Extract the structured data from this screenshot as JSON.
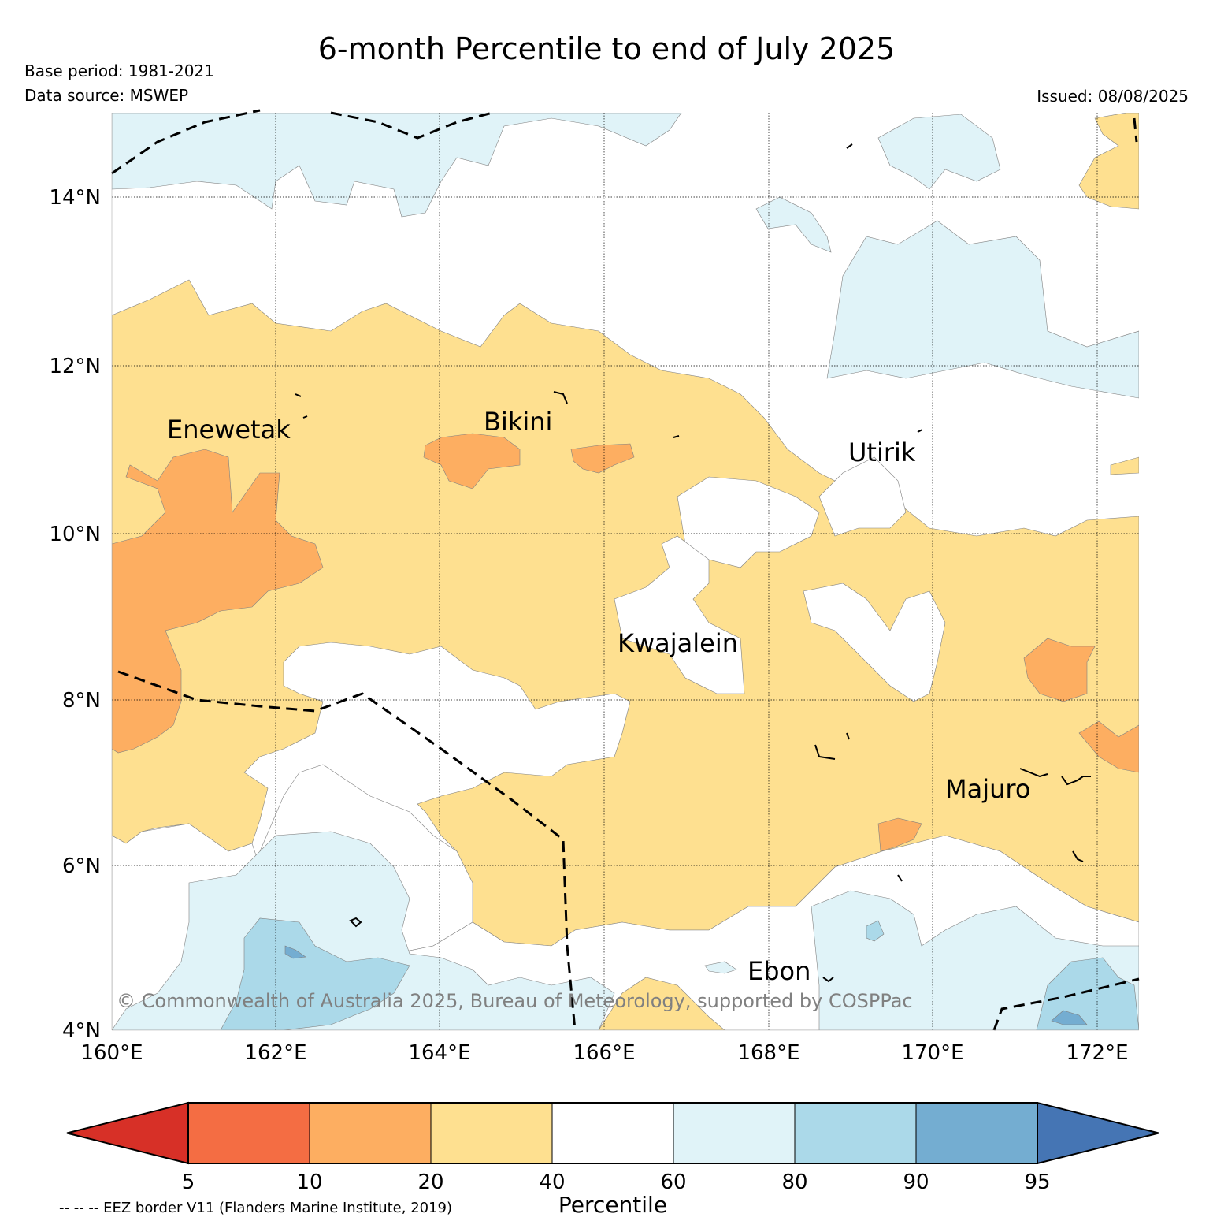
{
  "header": {
    "title": "6-month Percentile to end of July 2025",
    "base_period": "Base period: 1981-2021",
    "data_source": "Data source: MSWEP",
    "issued": "Issued: 08/08/2025"
  },
  "map": {
    "lon_range": [
      160,
      172.5
    ],
    "lat_range": [
      4,
      15
    ],
    "lon_ticks": [
      {
        "value": 160,
        "label": "160°E"
      },
      {
        "value": 162,
        "label": "162°E"
      },
      {
        "value": 164,
        "label": "164°E"
      },
      {
        "value": 166,
        "label": "166°E"
      },
      {
        "value": 168,
        "label": "168°E"
      },
      {
        "value": 170,
        "label": "170°E"
      },
      {
        "value": 172,
        "label": "172°E"
      }
    ],
    "lat_ticks": [
      {
        "value": 4,
        "label": "4°N"
      },
      {
        "value": 6,
        "label": "6°N"
      },
      {
        "value": 8,
        "label": "8°N"
      },
      {
        "value": 10,
        "label": "10°N"
      },
      {
        "value": 12,
        "label": "12°N"
      },
      {
        "value": 14,
        "label": "14°N"
      }
    ],
    "places": [
      {
        "name": "Enewetak",
        "lon": 160.7,
        "lat": 11.2
      },
      {
        "name": "Bikini",
        "lon": 164.55,
        "lat": 11.3
      },
      {
        "name": "Utirik",
        "lon": 169.0,
        "lat": 10.9
      },
      {
        "name": "Kwajalein",
        "lon": 166.2,
        "lat": 8.6
      },
      {
        "name": "Majuro",
        "lon": 170.2,
        "lat": 6.85
      },
      {
        "name": "Ebon",
        "lon": 167.7,
        "lat": 4.65
      }
    ],
    "copyright": "© Commonwealth of Australia 2025, Bureau of Meteorology, supported by COSPPac",
    "colors": {
      "pct_5_10": "#f46d43",
      "pct_10_20": "#fdae61",
      "pct_20_40": "#fee090",
      "pct_40_60": "#ffffff",
      "pct_60_80": "#e0f3f8",
      "pct_80_90": "#abd9e9",
      "pct_90_95": "#74add1",
      "under_5": "#d73027",
      "over_95": "#4575b4"
    }
  },
  "colorbar": {
    "label": "Percentile",
    "boundaries": [
      "5",
      "10",
      "20",
      "40",
      "60",
      "80",
      "90",
      "95"
    ],
    "segment_colors": [
      "#f46d43",
      "#fdae61",
      "#fee090",
      "#ffffff",
      "#e0f3f8",
      "#abd9e9",
      "#74add1"
    ],
    "extend_low_color": "#d73027",
    "extend_high_color": "#4575b4"
  },
  "footer": {
    "eez_note": "-- -- -- EEZ border V11 (Flanders Marine Institute, 2019)"
  }
}
